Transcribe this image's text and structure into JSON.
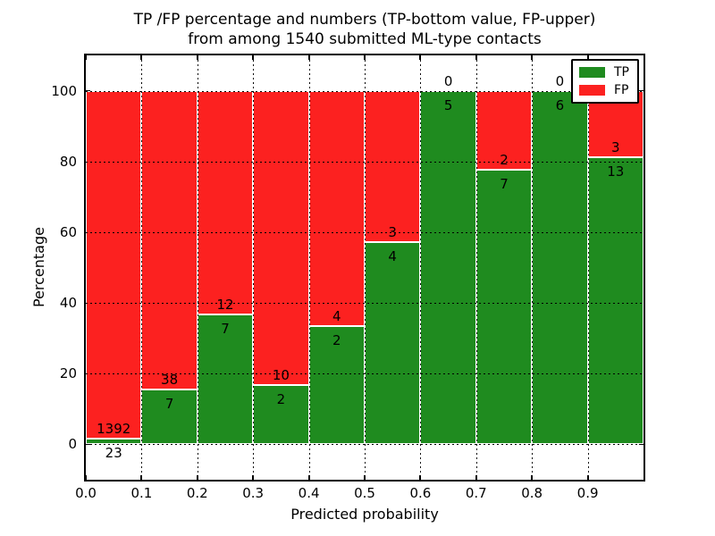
{
  "title": {
    "line1": "TP /FP percentage and numbers (TP-bottom value, FP-upper)",
    "line2": "from among 1540 submitted ML-type contacts"
  },
  "axes": {
    "xlabel": "Predicted probability",
    "ylabel": "Percentage",
    "x_tick_labels": [
      "0.0",
      "0.1",
      "0.2",
      "0.3",
      "0.4",
      "0.5",
      "0.6",
      "0.7",
      "0.8",
      "0.9"
    ],
    "y_tick_labels": [
      "0",
      "20",
      "40",
      "60",
      "80",
      "100"
    ],
    "y_tick_values": [
      0,
      20,
      40,
      60,
      80,
      100
    ],
    "xlim": [
      0.0,
      1.0
    ],
    "ylim": [
      -10,
      110
    ],
    "grid": true
  },
  "legend": {
    "position": "upper-right",
    "entries": [
      {
        "label": "TP",
        "color": "#1f8b1f"
      },
      {
        "label": "FP",
        "color": "#fc2120"
      }
    ]
  },
  "chart_data": {
    "type": "bar",
    "stacked": true,
    "value_unit": "percent of bin total (TP+FP normalized to 100)",
    "total_contacts": 1540,
    "colors": {
      "tp": "#1f8b1f",
      "fp": "#fc2120"
    },
    "bins": [
      {
        "range": [
          0.0,
          0.1
        ],
        "tp": 23,
        "fp": 1392
      },
      {
        "range": [
          0.1,
          0.2
        ],
        "tp": 7,
        "fp": 38
      },
      {
        "range": [
          0.2,
          0.3
        ],
        "tp": 7,
        "fp": 12
      },
      {
        "range": [
          0.3,
          0.4
        ],
        "tp": 2,
        "fp": 10
      },
      {
        "range": [
          0.4,
          0.5
        ],
        "tp": 2,
        "fp": 4
      },
      {
        "range": [
          0.5,
          0.6
        ],
        "tp": 4,
        "fp": 3
      },
      {
        "range": [
          0.6,
          0.7
        ],
        "tp": 5,
        "fp": 0
      },
      {
        "range": [
          0.7,
          0.8
        ],
        "tp": 7,
        "fp": 2
      },
      {
        "range": [
          0.8,
          0.9
        ],
        "tp": 6,
        "fp": 0
      },
      {
        "range": [
          0.9,
          1.0
        ],
        "tp": 13,
        "fp": 3
      }
    ]
  }
}
